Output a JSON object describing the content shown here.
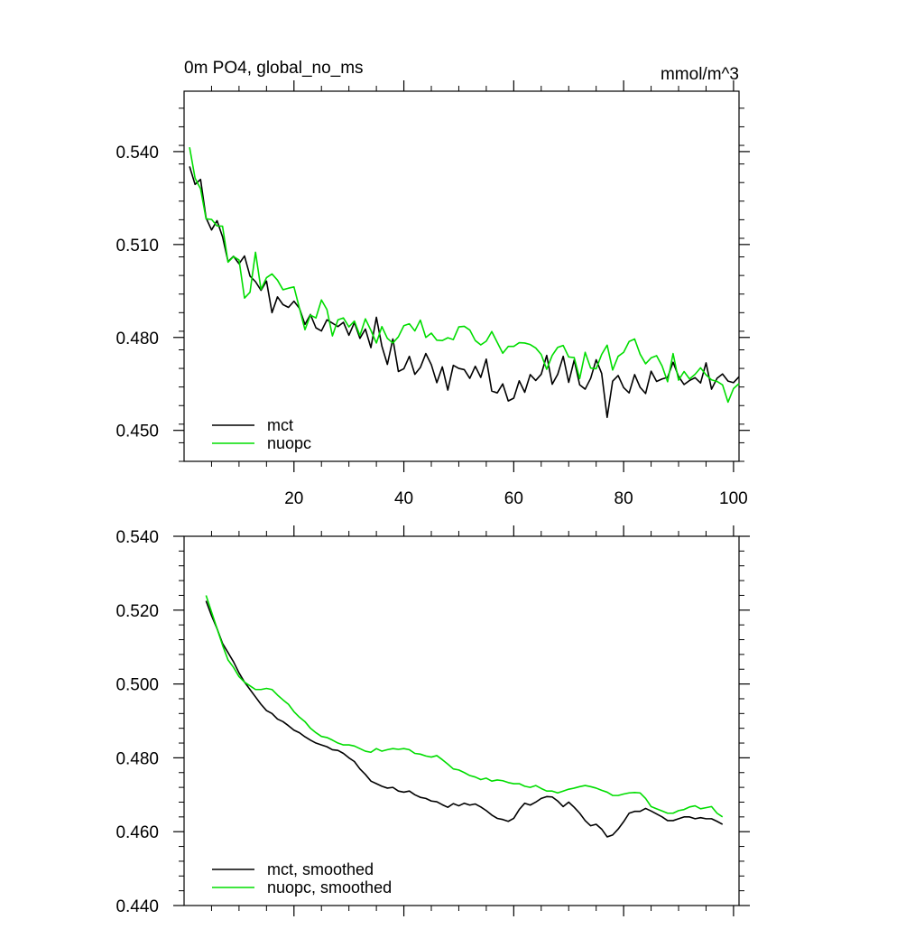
{
  "colors": {
    "mct": "#000000",
    "nuopc": "#00dd00"
  },
  "chart_data": [
    {
      "type": "line",
      "title_left": "0m PO4, global_no_ms",
      "title_right": "mmol/m^3",
      "xlim": [
        0,
        101
      ],
      "ylim": [
        0.44,
        0.5595
      ],
      "yticks": [
        "0.450",
        "0.480",
        "0.510",
        "0.540"
      ],
      "yticks_values": [
        0.45,
        0.48,
        0.51,
        0.54
      ],
      "xticks": [
        "20",
        "40",
        "60",
        "80",
        "100"
      ],
      "xticks_values": [
        20,
        40,
        60,
        80,
        100
      ],
      "legend": [
        "mct",
        "nuopc"
      ],
      "legend_position": "bottom-left",
      "series": [
        {
          "name": "mct",
          "color": "#000000",
          "values": [
            0.5352,
            0.5294,
            0.531,
            0.5186,
            0.5147,
            0.5177,
            0.5125,
            0.5045,
            0.5062,
            0.5038,
            0.5063,
            0.4998,
            0.498,
            0.4952,
            0.4982,
            0.488,
            0.4931,
            0.4906,
            0.4897,
            0.4917,
            0.4894,
            0.4842,
            0.4874,
            0.4831,
            0.4821,
            0.4857,
            0.4846,
            0.4835,
            0.4849,
            0.4807,
            0.4848,
            0.4797,
            0.4827,
            0.4767,
            0.4865,
            0.4772,
            0.4713,
            0.4795,
            0.469,
            0.4699,
            0.4739,
            0.4681,
            0.4703,
            0.4748,
            0.4712,
            0.4654,
            0.4705,
            0.463,
            0.471,
            0.47,
            0.4696,
            0.4668,
            0.4707,
            0.4671,
            0.473,
            0.4627,
            0.4621,
            0.465,
            0.4595,
            0.4604,
            0.466,
            0.4623,
            0.468,
            0.4661,
            0.4681,
            0.4742,
            0.4649,
            0.4681,
            0.4739,
            0.4655,
            0.4727,
            0.4647,
            0.4633,
            0.4668,
            0.4728,
            0.4684,
            0.4542,
            0.4659,
            0.4677,
            0.4638,
            0.4621,
            0.468,
            0.4639,
            0.4619,
            0.4691,
            0.4658,
            0.4666,
            0.4671,
            0.472,
            0.4674,
            0.4648,
            0.4661,
            0.467,
            0.4653,
            0.4718,
            0.4633,
            0.4668,
            0.4682,
            0.4659,
            0.4654,
            0.4673
          ]
        },
        {
          "name": "nuopc",
          "color": "#00dd00",
          "values": [
            0.5414,
            0.5314,
            0.528,
            0.5183,
            0.5181,
            0.516,
            0.5159,
            0.5043,
            0.5061,
            0.505,
            0.4927,
            0.4946,
            0.5075,
            0.4955,
            0.4993,
            0.5005,
            0.4985,
            0.4954,
            0.4959,
            0.4963,
            0.4894,
            0.4825,
            0.4872,
            0.4863,
            0.4921,
            0.489,
            0.4805,
            0.4857,
            0.4863,
            0.4834,
            0.4853,
            0.4806,
            0.486,
            0.4823,
            0.4782,
            0.4835,
            0.4797,
            0.4782,
            0.4802,
            0.4838,
            0.4844,
            0.4821,
            0.4856,
            0.48,
            0.4814,
            0.4791,
            0.479,
            0.4799,
            0.4793,
            0.4834,
            0.4836,
            0.4824,
            0.479,
            0.4776,
            0.4788,
            0.4819,
            0.4784,
            0.4749,
            0.4771,
            0.4771,
            0.4783,
            0.4782,
            0.4777,
            0.4766,
            0.4745,
            0.4697,
            0.4742,
            0.4768,
            0.4774,
            0.4737,
            0.4735,
            0.4667,
            0.4752,
            0.4701,
            0.4699,
            0.4745,
            0.4775,
            0.4695,
            0.4739,
            0.4752,
            0.4787,
            0.4795,
            0.4746,
            0.4715,
            0.4734,
            0.4741,
            0.4708,
            0.4657,
            0.4748,
            0.4662,
            0.469,
            0.4666,
            0.4681,
            0.4702,
            0.4679,
            0.4663,
            0.4658,
            0.4647,
            0.4591,
            0.4635,
            0.4651
          ]
        }
      ]
    },
    {
      "type": "line",
      "xlim": [
        0,
        101
      ],
      "ylim": [
        0.44,
        0.54
      ],
      "yticks": [
        "0.440",
        "0.460",
        "0.480",
        "0.500",
        "0.520",
        "0.540"
      ],
      "yticks_values": [
        0.44,
        0.46,
        0.48,
        0.5,
        0.52,
        0.54
      ],
      "xticks_values": [
        20,
        40,
        60,
        80,
        100
      ],
      "legend": [
        "mct, smoothed",
        "nuopc, smoothed"
      ],
      "legend_position": "bottom-left",
      "series": [
        {
          "name": "mct, smoothed",
          "color": "#000000",
          "x": [
            4,
            5,
            6,
            7,
            8,
            9,
            10,
            11,
            12,
            13,
            14,
            15,
            16,
            17,
            18,
            19,
            20,
            21,
            22,
            23,
            24,
            25,
            26,
            27,
            28,
            29,
            30,
            31,
            32,
            33,
            34,
            35,
            36,
            37,
            38,
            39,
            40,
            41,
            42,
            43,
            44,
            45,
            46,
            47,
            48,
            49,
            50,
            51,
            52,
            53,
            54,
            55,
            56,
            57,
            58,
            59,
            60,
            61,
            62,
            63,
            64,
            65,
            66,
            67,
            68,
            69,
            70,
            71,
            72,
            73,
            74,
            75,
            76,
            77,
            78,
            79,
            80,
            81,
            82,
            83,
            84,
            85,
            86,
            87,
            88,
            89,
            90,
            91,
            92,
            93,
            94,
            95,
            96,
            97,
            98
          ],
          "values": [
            0.5225,
            0.5185,
            0.515,
            0.511,
            0.5085,
            0.506,
            0.503,
            0.5005,
            0.4985,
            0.4965,
            0.4945,
            0.4928,
            0.492,
            0.4905,
            0.4898,
            0.4887,
            0.4875,
            0.4868,
            0.4857,
            0.4848,
            0.484,
            0.4835,
            0.483,
            0.4822,
            0.482,
            0.4812,
            0.48,
            0.479,
            0.477,
            0.4755,
            0.4737,
            0.473,
            0.4723,
            0.4718,
            0.472,
            0.471,
            0.4707,
            0.471,
            0.47,
            0.4693,
            0.469,
            0.4683,
            0.4681,
            0.4673,
            0.4666,
            0.4676,
            0.467,
            0.4677,
            0.4672,
            0.4675,
            0.4667,
            0.4657,
            0.4645,
            0.4636,
            0.4633,
            0.4628,
            0.4636,
            0.466,
            0.4677,
            0.4672,
            0.468,
            0.469,
            0.4695,
            0.4694,
            0.4683,
            0.4668,
            0.468,
            0.4666,
            0.465,
            0.463,
            0.4616,
            0.462,
            0.4607,
            0.4586,
            0.4591,
            0.4607,
            0.4627,
            0.465,
            0.4655,
            0.4655,
            0.4663,
            0.4656,
            0.4648,
            0.464,
            0.463,
            0.463,
            0.4635,
            0.464,
            0.464,
            0.4635,
            0.4638,
            0.4635,
            0.4635,
            0.4628,
            0.462
          ]
        },
        {
          "name": "nuopc, smoothed",
          "color": "#00dd00",
          "x": [
            4,
            5,
            6,
            7,
            8,
            9,
            10,
            11,
            12,
            13,
            14,
            15,
            16,
            17,
            18,
            19,
            20,
            21,
            22,
            23,
            24,
            25,
            26,
            27,
            28,
            29,
            30,
            31,
            32,
            33,
            34,
            35,
            36,
            37,
            38,
            39,
            40,
            41,
            42,
            43,
            44,
            45,
            46,
            47,
            48,
            49,
            50,
            51,
            52,
            53,
            54,
            55,
            56,
            57,
            58,
            59,
            60,
            61,
            62,
            63,
            64,
            65,
            66,
            67,
            68,
            69,
            70,
            71,
            72,
            73,
            74,
            75,
            76,
            77,
            78,
            79,
            80,
            81,
            82,
            83,
            84,
            85,
            86,
            87,
            88,
            89,
            90,
            91,
            92,
            93,
            94,
            95,
            96,
            97,
            98
          ],
          "values": [
            0.524,
            0.5195,
            0.515,
            0.5105,
            0.5065,
            0.5045,
            0.502,
            0.5005,
            0.4995,
            0.4985,
            0.4985,
            0.4988,
            0.4985,
            0.497,
            0.4957,
            0.4945,
            0.4925,
            0.491,
            0.4898,
            0.488,
            0.4868,
            0.4858,
            0.4855,
            0.4848,
            0.484,
            0.4835,
            0.4835,
            0.4832,
            0.4825,
            0.4818,
            0.4815,
            0.4825,
            0.4818,
            0.4822,
            0.4825,
            0.4823,
            0.4825,
            0.4822,
            0.4812,
            0.481,
            0.4805,
            0.4802,
            0.4806,
            0.4795,
            0.4783,
            0.477,
            0.4767,
            0.476,
            0.4752,
            0.4748,
            0.4741,
            0.4745,
            0.4737,
            0.474,
            0.4738,
            0.4733,
            0.473,
            0.473,
            0.4723,
            0.472,
            0.4725,
            0.4717,
            0.471,
            0.471,
            0.4705,
            0.471,
            0.4715,
            0.4718,
            0.4722,
            0.4725,
            0.4722,
            0.4718,
            0.4712,
            0.4707,
            0.4698,
            0.4698,
            0.4702,
            0.4705,
            0.4706,
            0.4705,
            0.469,
            0.4668,
            0.4662,
            0.4656,
            0.465,
            0.465,
            0.4657,
            0.466,
            0.4667,
            0.467,
            0.4662,
            0.4665,
            0.4668,
            0.465,
            0.464
          ]
        }
      ]
    }
  ]
}
